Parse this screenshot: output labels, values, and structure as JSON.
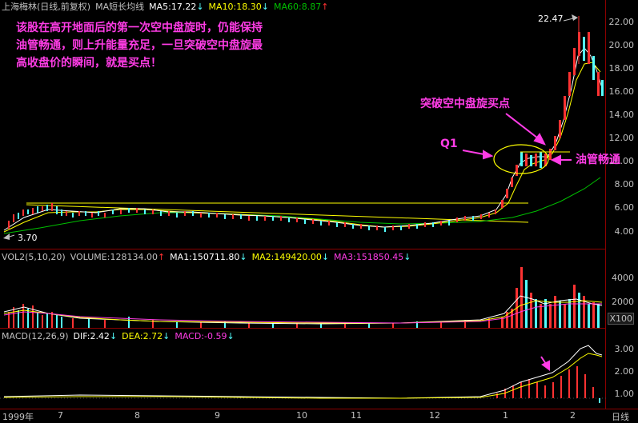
{
  "header": {
    "stock": "上海梅林(日线,前复权)",
    "ma_label": "MA短长均线",
    "ma5": "MA5:17.22",
    "ma10": "MA10:18.30",
    "ma60": "MA60:8.87",
    "arrow_down": "↓",
    "arrow_up": "↑"
  },
  "annotation": {
    "line1": "该股在高开地面后的第一次空中盘旋时，仍能保持",
    "line2": "油管畅通，则上升能量充足，一旦突破空中盘旋最",
    "line3": "高收盘价的瞬间，就是买点！",
    "buy_label": "突破空中盘旋买点",
    "q1": "Q1",
    "pipe": "油管畅通"
  },
  "price": {
    "high_label": "22.47",
    "low_label": "3.70",
    "yticks": [
      "22.00",
      "20.00",
      "18.00",
      "16.00",
      "14.00",
      "12.00",
      "10.00",
      "8.00",
      "6.00",
      "4.00"
    ]
  },
  "volume": {
    "title": "VOL2(5,10,20)",
    "volume": "VOLUME:128134.00",
    "ma1": "MA1:150711.80",
    "ma2": "MA2:149420.00",
    "ma3": "MA3:151850.45",
    "yticks": [
      "4000",
      "2000"
    ],
    "unit": "X100"
  },
  "macd": {
    "title": "MACD(12,26,9)",
    "dif": "DIF:2.42",
    "dea": "DEA:2.72",
    "macd": "MACD:-0.59",
    "yticks": [
      "3.00",
      "2.00",
      "1.00"
    ]
  },
  "dates": {
    "year": "1999年",
    "months": [
      "7",
      "8",
      "9",
      "10",
      "11",
      "12",
      "1",
      "2"
    ],
    "period": "日线"
  },
  "colors": {
    "up": "#ff3232",
    "down": "#54ffff",
    "ma5": "#ffffff",
    "ma10": "#ffff00",
    "ma60": "#00c000",
    "annotation": "#ff3ce6",
    "grid": "#8b0000"
  }
}
